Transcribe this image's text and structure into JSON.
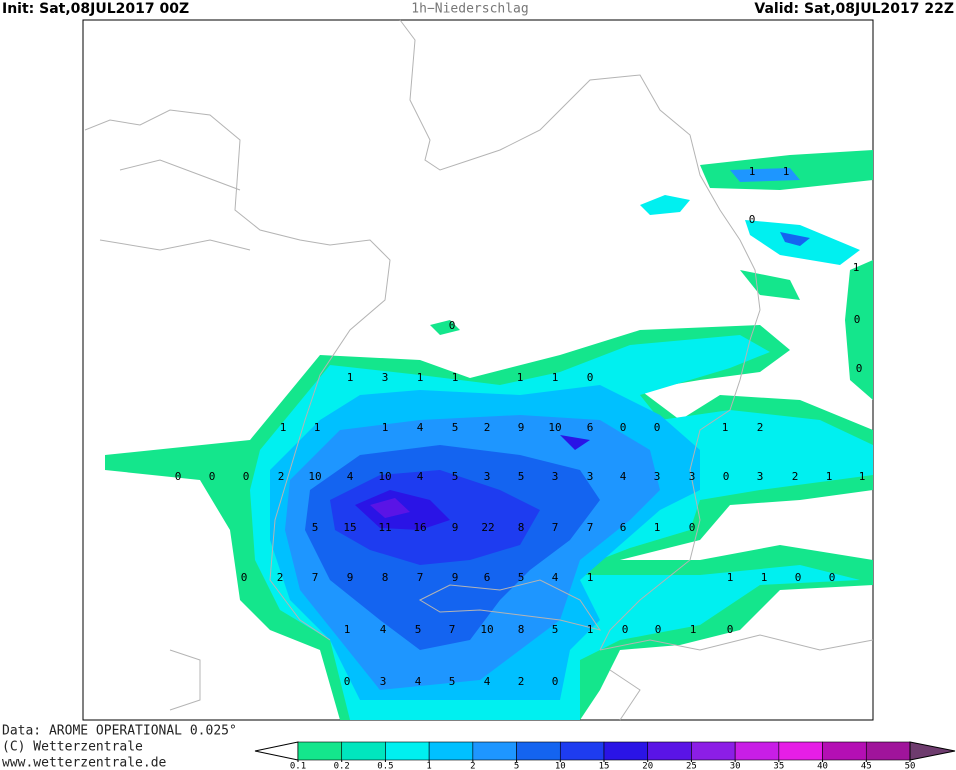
{
  "header": {
    "init": "Init: Sat,08JUL2017 00Z",
    "title": "1h−Niederschlag",
    "valid": "Valid: Sat,08JUL2017 22Z"
  },
  "footer": [
    "Data: AROME OPERATIONAL 0.025°",
    "(C) Wetterzentrale",
    "www.wetterzentrale.de"
  ],
  "colorbar": {
    "ticks": [
      0.1,
      0.2,
      0.5,
      1,
      2,
      5,
      10,
      15,
      20,
      25,
      30,
      35,
      40,
      45,
      50
    ],
    "under_color": "#ffffff",
    "colors": [
      "#14e68c",
      "#00e6be",
      "#00f0f0",
      "#00c0ff",
      "#1e96ff",
      "#1464f0",
      "#1e3cf0",
      "#2a14e6",
      "#5a14e6",
      "#8c1ee6",
      "#c81ee6",
      "#e61ee6",
      "#b40fb4",
      "#a0149b"
    ],
    "over_color": "#6e3c6e"
  },
  "map_labels": [
    "1",
    "3",
    "1",
    "1",
    "1",
    "1",
    "0",
    "1",
    "1",
    "1",
    "4",
    "5",
    "2",
    "9",
    "10",
    "6",
    "0",
    "0",
    "1",
    "2",
    "0",
    "0",
    "0",
    "2",
    "10",
    "4",
    "10",
    "4",
    "5",
    "3",
    "5",
    "3",
    "3",
    "4",
    "3",
    "3",
    "0",
    "3",
    "2",
    "1",
    "1",
    "5",
    "15",
    "11",
    "16",
    "9",
    "22",
    "8",
    "7",
    "7",
    "6",
    "1",
    "0",
    "0",
    "2",
    "7",
    "9",
    "8",
    "7",
    "9",
    "6",
    "5",
    "4",
    "1",
    "1",
    "1",
    "0",
    "0",
    "1",
    "4",
    "5",
    "7",
    "10",
    "8",
    "5",
    "1",
    "0",
    "0",
    "1",
    "0",
    "0",
    "3",
    "4",
    "5",
    "4",
    "2",
    "0",
    "0",
    "1",
    "1",
    "0",
    "1",
    "0",
    "0"
  ]
}
